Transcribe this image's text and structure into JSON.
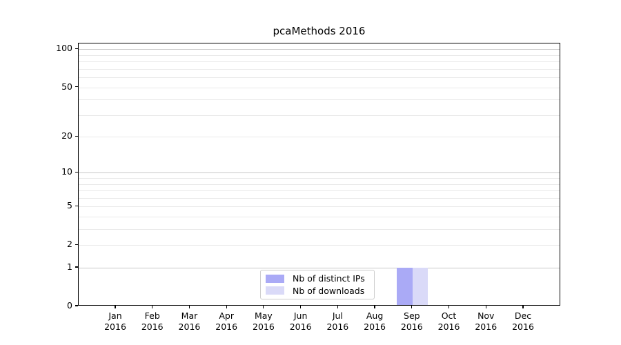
{
  "chart_data": {
    "type": "bar",
    "title": "pcaMethods 2016",
    "year": "2016",
    "categories": [
      "Jan",
      "Feb",
      "Mar",
      "Apr",
      "May",
      "Jun",
      "Jul",
      "Aug",
      "Sep",
      "Oct",
      "Nov",
      "Dec"
    ],
    "series": [
      {
        "name": "Nb of distinct IPs",
        "color": "#aaaaf6",
        "values": [
          0,
          0,
          0,
          0,
          0,
          0,
          0,
          0,
          1,
          0,
          0,
          0
        ]
      },
      {
        "name": "Nb of downloads",
        "color": "#dadaf8",
        "values": [
          0,
          0,
          0,
          0,
          0,
          0,
          0,
          0,
          1,
          0,
          0,
          0
        ]
      }
    ],
    "y_axis": {
      "scale": "log1p",
      "ticks": [
        0,
        1,
        2,
        5,
        10,
        20,
        50,
        100
      ],
      "gridlines_major": [
        1,
        10,
        100
      ],
      "gridlines_minor": [
        2,
        3,
        4,
        5,
        6,
        7,
        8,
        9,
        20,
        30,
        40,
        50,
        60,
        70,
        80,
        90
      ],
      "ylim": [
        0,
        111
      ]
    },
    "legend": {
      "position": "lower-center"
    },
    "grid": "on"
  }
}
